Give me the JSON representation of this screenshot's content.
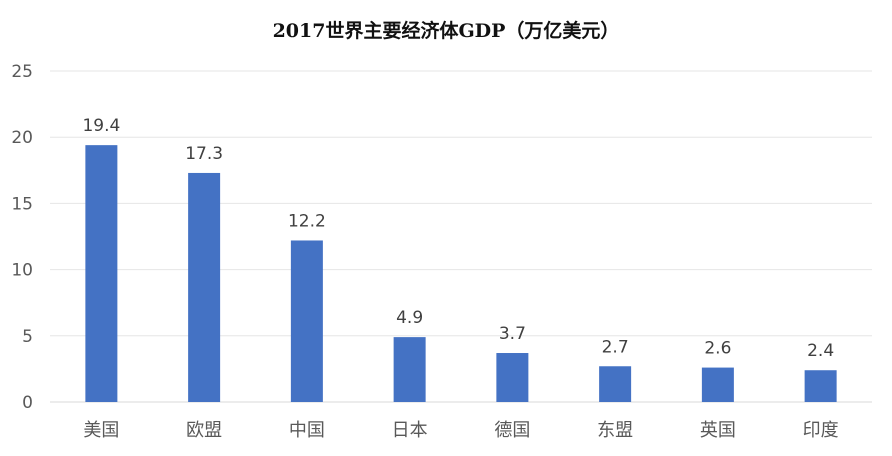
{
  "chart_data": {
    "type": "bar",
    "title": "2017世界主要经济体GDP（万亿美元）",
    "xlabel": "",
    "ylabel": "",
    "categories": [
      "美国",
      "欧盟",
      "中国",
      "日本",
      "德国",
      "东盟",
      "英国",
      "印度"
    ],
    "values": [
      19.4,
      17.3,
      12.2,
      4.9,
      3.7,
      2.7,
      2.6,
      2.4
    ],
    "data_labels": [
      "19.4",
      "17.3",
      "12.2",
      "4.9",
      "3.7",
      "2.7",
      "2.6",
      "2.4"
    ],
    "ylim": [
      0,
      25
    ],
    "yticks": [
      0,
      5,
      10,
      15,
      20,
      25
    ],
    "ytick_labels": [
      "0",
      "5",
      "10",
      "15",
      "20",
      "25"
    ],
    "grid": true,
    "legend": "none",
    "bar_color": "#4472C4"
  }
}
